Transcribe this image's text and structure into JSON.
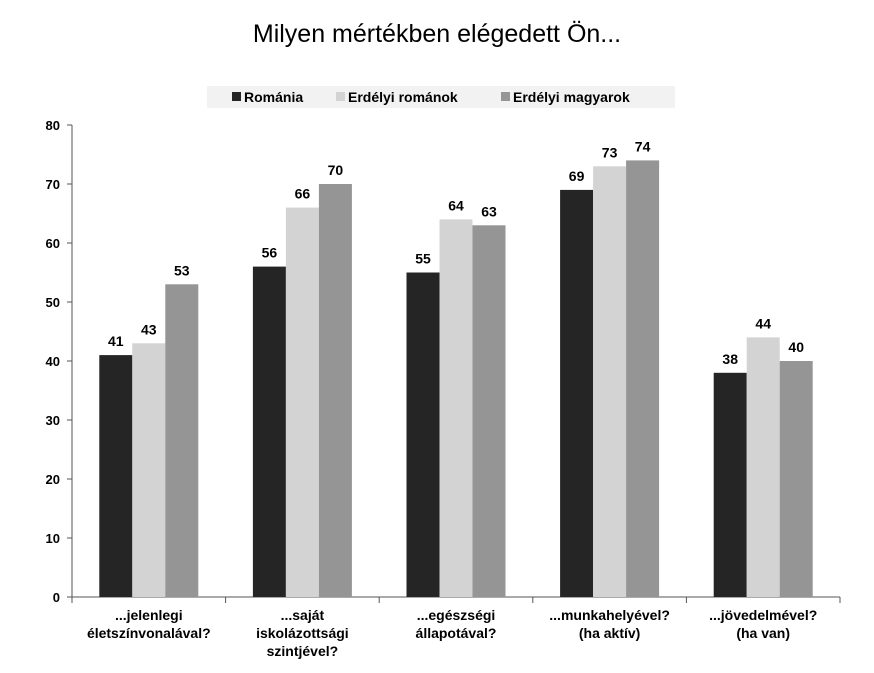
{
  "chart_data": {
    "type": "bar",
    "title": "Milyen mértékben elégedett Ön...",
    "xlabel": "",
    "ylabel": "",
    "ylim": [
      0,
      80
    ],
    "yticks": [
      0,
      10,
      20,
      30,
      40,
      50,
      60,
      70,
      80
    ],
    "grid": false,
    "legend_position": "top",
    "categories": [
      [
        "...jelenlegi",
        "életszínvonalával?"
      ],
      [
        "...saját",
        "iskolázottsági",
        "szintjével?"
      ],
      [
        "...egészségi",
        "állapotával?"
      ],
      [
        "...munkahelyével?",
        "(ha aktív)"
      ],
      [
        "...jövedelmével?",
        "(ha van)"
      ]
    ],
    "series": [
      {
        "name": "Románia",
        "color": "#252525",
        "values": [
          41,
          56,
          55,
          69,
          38
        ]
      },
      {
        "name": "Erdélyi románok",
        "color": "#d3d3d3",
        "values": [
          43,
          66,
          64,
          73,
          44
        ]
      },
      {
        "name": "Erdélyi magyarok",
        "color": "#959595",
        "values": [
          53,
          70,
          63,
          74,
          40
        ]
      }
    ]
  }
}
